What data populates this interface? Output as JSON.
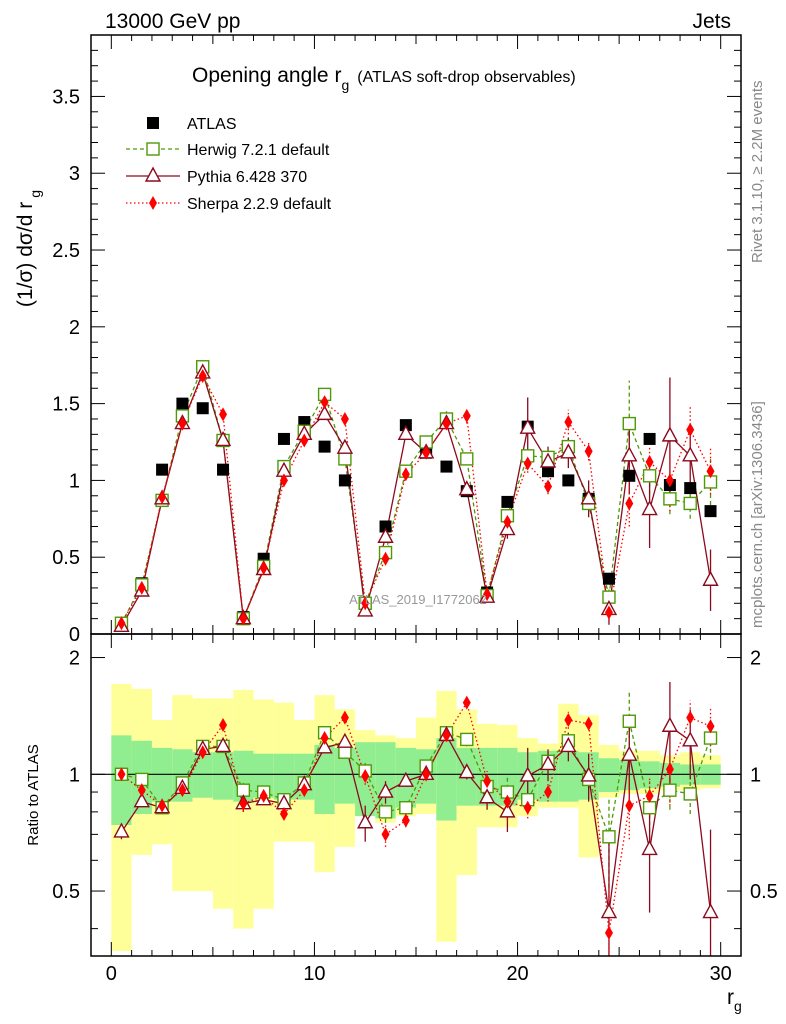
{
  "header": {
    "left": "13000 GeV pp",
    "right": "Jets"
  },
  "side": {
    "rivet": "Rivet 3.1.10, ≥ 2.2M events",
    "mcplots": "mcplots.cern.ch [arXiv:1306.3436]"
  },
  "watermark": "ATLAS_2019_I1772062",
  "colors": {
    "atlas": "#000000",
    "herwig": "#4e9a06",
    "pythia": "#8b0a1e",
    "sherpa": "#ff0000",
    "band_stat": "#90ee90",
    "band_tot": "#ffff99"
  },
  "chart_data": {
    "type": "line",
    "title": "Opening angle r",
    "title_sub": "g",
    "title_suffix": "(ATLAS soft-drop observables)",
    "xlabel": "r",
    "xlabel_sub": "g",
    "ylabel": "(1/σ) dσ/d r",
    "ylabel_sub": "g",
    "xlim": [
      -1,
      31
    ],
    "ylim": [
      0,
      3.9
    ],
    "xticks": [
      "0",
      "10",
      "20",
      "30"
    ],
    "yticks": [
      "0",
      "0.5",
      "1",
      "1.5",
      "2",
      "2.5",
      "3",
      "3.5"
    ],
    "x": [
      0.5,
      1.5,
      2.5,
      3.5,
      4.5,
      5.5,
      6.5,
      7.5,
      8.5,
      9.5,
      10.5,
      11.5,
      12.5,
      13.5,
      14.5,
      15.5,
      16.5,
      17.5,
      18.5,
      19.5,
      20.5,
      21.5,
      22.5,
      23.5,
      24.5,
      25.5,
      26.5,
      27.5,
      28.5,
      29.5
    ],
    "series": [
      {
        "name": "ATLAS",
        "style": "data",
        "values": [
          0.07,
          0.33,
          1.07,
          1.5,
          1.47,
          1.07,
          0.11,
          0.49,
          1.27,
          1.38,
          1.22,
          1.0,
          0.2,
          0.7,
          1.36,
          1.18,
          1.09,
          0.93,
          0.27,
          0.86,
          1.35,
          1.06,
          1.0,
          0.88,
          0.36,
          1.03,
          1.27,
          0.97,
          0.95,
          0.8
        ]
      },
      {
        "name": "Herwig 7.2.1 default",
        "style": "square",
        "values": [
          0.07,
          0.32,
          0.87,
          1.42,
          1.74,
          1.26,
          0.1,
          0.44,
          1.09,
          1.32,
          1.56,
          1.14,
          0.2,
          0.53,
          1.06,
          1.25,
          1.4,
          1.14,
          0.25,
          0.77,
          1.16,
          1.15,
          1.22,
          0.85,
          0.24,
          1.37,
          1.03,
          0.88,
          0.85,
          0.99
        ],
        "errors": [
          0,
          0,
          0,
          0,
          0,
          0,
          0,
          0,
          0,
          0,
          0,
          0,
          0,
          0,
          0,
          0,
          0.05,
          0.04,
          0,
          0,
          0,
          0,
          0.05,
          0.04,
          0.05,
          0.28,
          0.12,
          0.1,
          0.1,
          0.15
        ]
      },
      {
        "name": "Pythia 6.428 370",
        "style": "triangle",
        "values": [
          0.05,
          0.28,
          0.88,
          1.37,
          1.7,
          1.26,
          0.1,
          0.42,
          1.06,
          1.3,
          1.43,
          1.21,
          0.15,
          0.63,
          1.3,
          1.18,
          1.37,
          0.94,
          0.24,
          0.68,
          1.34,
          1.12,
          1.18,
          0.88,
          0.16,
          1.16,
          0.81,
          1.29,
          1.16,
          0.35
        ],
        "errors": [
          0,
          0,
          0,
          0,
          0,
          0,
          0,
          0,
          0,
          0,
          0,
          0,
          0,
          0,
          0,
          0,
          0,
          0,
          0,
          0.06,
          0.2,
          0.1,
          0.1,
          0.12,
          0.1,
          0.25,
          0.25,
          0.38,
          0.2,
          0.2
        ]
      },
      {
        "name": "Sherpa 2.2.9 default",
        "style": "diamond",
        "values": [
          0.07,
          0.3,
          0.89,
          1.37,
          1.68,
          1.43,
          0.1,
          0.43,
          1.0,
          1.26,
          1.51,
          1.4,
          0.2,
          0.49,
          1.04,
          1.18,
          1.37,
          1.42,
          0.26,
          0.73,
          1.11,
          0.96,
          1.38,
          1.19,
          0.14,
          0.85,
          1.12,
          1.0,
          1.33,
          1.06
        ],
        "errors": [
          0,
          0,
          0,
          0,
          0,
          0,
          0,
          0,
          0,
          0,
          0,
          0,
          0,
          0,
          0,
          0,
          0,
          0.05,
          0,
          0,
          0.06,
          0.05,
          0.08,
          0.06,
          0.05,
          0.15,
          0.1,
          0.2,
          0.15,
          0.15
        ]
      }
    ],
    "ratio": {
      "ylabel": "Ratio to ATLAS",
      "ylim": [
        0.34,
        2.3
      ],
      "yticks": [
        "0.5",
        "1",
        "2"
      ],
      "reference": 1,
      "band_stat": [
        [
          0.74,
          1.26
        ],
        [
          0.79,
          1.22
        ],
        [
          0.85,
          1.17
        ],
        [
          0.85,
          1.16
        ],
        [
          0.87,
          1.14
        ],
        [
          0.86,
          1.14
        ],
        [
          0.85,
          1.15
        ],
        [
          0.87,
          1.13
        ],
        [
          0.86,
          1.13
        ],
        [
          0.86,
          1.13
        ],
        [
          0.79,
          1.19
        ],
        [
          0.84,
          1.17
        ],
        [
          0.78,
          1.21
        ],
        [
          0.77,
          1.21
        ],
        [
          0.82,
          1.17
        ],
        [
          0.84,
          1.16
        ],
        [
          0.76,
          1.24
        ],
        [
          0.83,
          1.17
        ],
        [
          0.83,
          1.17
        ],
        [
          0.83,
          1.17
        ],
        [
          0.86,
          1.14
        ],
        [
          0.85,
          1.15
        ],
        [
          0.85,
          1.15
        ],
        [
          0.86,
          1.14
        ],
        [
          0.9,
          1.1
        ],
        [
          0.91,
          1.09
        ],
        [
          0.92,
          1.08
        ],
        [
          0.93,
          1.07
        ],
        [
          0.94,
          1.06
        ],
        [
          0.94,
          1.06
        ]
      ],
      "band_tot": [
        [
          0.35,
          1.71
        ],
        [
          0.62,
          1.66
        ],
        [
          0.66,
          1.38
        ],
        [
          0.5,
          1.6
        ],
        [
          0.5,
          1.57
        ],
        [
          0.45,
          1.57
        ],
        [
          0.4,
          1.65
        ],
        [
          0.45,
          1.56
        ],
        [
          0.67,
          1.53
        ],
        [
          0.67,
          1.38
        ],
        [
          0.56,
          1.6
        ],
        [
          0.65,
          1.47
        ],
        [
          0.78,
          1.3
        ],
        [
          0.75,
          1.26
        ],
        [
          0.78,
          1.24
        ],
        [
          0.79,
          1.4
        ],
        [
          0.37,
          1.64
        ],
        [
          0.55,
          1.47
        ],
        [
          0.73,
          1.35
        ],
        [
          0.73,
          1.34
        ],
        [
          0.78,
          1.24
        ],
        [
          0.82,
          1.2
        ],
        [
          0.82,
          1.52
        ],
        [
          0.61,
          1.42
        ],
        [
          0.87,
          1.19
        ],
        [
          0.89,
          1.15
        ],
        [
          0.89,
          1.15
        ],
        [
          0.91,
          1.12
        ],
        [
          0.91,
          1.14
        ],
        [
          0.92,
          1.12
        ]
      ],
      "herwig": [
        1.0,
        0.97,
        0.82,
        0.95,
        1.18,
        1.18,
        0.91,
        0.9,
        0.86,
        0.95,
        1.28,
        1.14,
        1.02,
        0.8,
        0.82,
        1.05,
        1.28,
        1.23,
        0.93,
        0.9,
        0.86,
        1.08,
        1.22,
        0.97,
        0.69,
        1.37,
        0.82,
        0.91,
        0.89,
        1.24
      ],
      "herwig_err": [
        0.03,
        0,
        0,
        0,
        0,
        0,
        0.04,
        0,
        0,
        0,
        0,
        0,
        0.05,
        0.05,
        0.03,
        0.04,
        0.04,
        0.05,
        0.06,
        0.09,
        0.05,
        0.05,
        0.07,
        0.05,
        0.18,
        0.28,
        0.14,
        0.1,
        0.1,
        0.15
      ],
      "pythia": [
        0.71,
        0.85,
        0.82,
        0.92,
        1.16,
        1.18,
        0.84,
        0.86,
        0.84,
        0.94,
        1.17,
        1.21,
        0.75,
        0.9,
        0.96,
        1.0,
        1.26,
        1.01,
        0.87,
        0.8,
        0.99,
        1.06,
        1.18,
        0.99,
        0.44,
        1.12,
        0.64,
        1.33,
        1.22,
        0.44
      ],
      "pythia_err": [
        0.03,
        0,
        0,
        0,
        0,
        0,
        0.04,
        0,
        0,
        0,
        0,
        0,
        0.08,
        0.06,
        0.03,
        0.03,
        0.04,
        0.04,
        0.06,
        0.09,
        0.18,
        0.1,
        0.1,
        0.14,
        0.25,
        0.27,
        0.2,
        0.4,
        0.25,
        0.28
      ],
      "sherpa": [
        1.0,
        0.91,
        0.83,
        0.91,
        1.14,
        1.34,
        0.84,
        0.88,
        0.79,
        0.91,
        1.24,
        1.4,
        0.99,
        0.7,
        0.76,
        1.0,
        1.26,
        1.53,
        0.96,
        0.85,
        0.82,
        0.9,
        1.38,
        1.35,
        0.39,
        0.83,
        0.88,
        1.03,
        1.4,
        1.33
      ],
      "sherpa_err": [
        0.03,
        0,
        0,
        0,
        0,
        0,
        0.04,
        0,
        0,
        0,
        0,
        0,
        0.05,
        0.05,
        0.03,
        0.04,
        0.04,
        0.05,
        0.06,
        0.09,
        0.05,
        0.05,
        0.07,
        0.05,
        0.12,
        0.15,
        0.1,
        0.2,
        0.15,
        0.15
      ]
    }
  }
}
